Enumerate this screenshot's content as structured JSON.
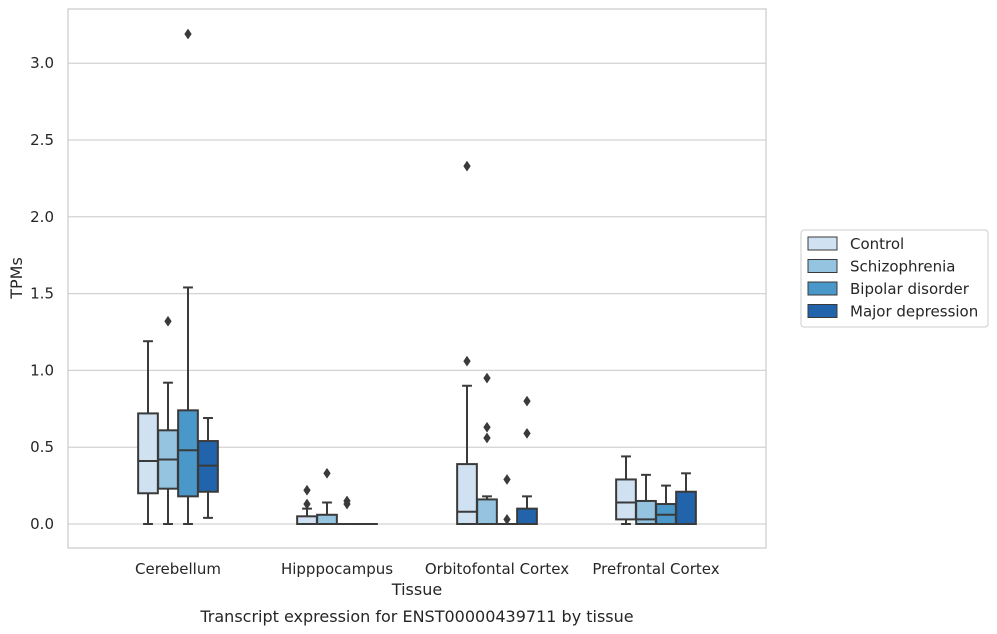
{
  "chart_data": {
    "type": "box",
    "title": "",
    "xlabel": "Tissue",
    "ylabel": "TPMs",
    "caption": "Transcript expression for ENST00000439711 by tissue",
    "ylim": [
      -0.16,
      3.36
    ],
    "yticks": [
      0.0,
      0.5,
      1.0,
      1.5,
      2.0,
      2.5,
      3.0
    ],
    "ytick_labels": [
      "0.0",
      "0.5",
      "1.0",
      "1.5",
      "2.0",
      "2.5",
      "3.0"
    ],
    "grid": "horizontal",
    "legend_position": "right",
    "categories": [
      "Cerebellum",
      "Hipppocampus",
      "Orbitofontal Cortex",
      "Prefrontal Cortex"
    ],
    "series": [
      {
        "name": "Control",
        "color": "#d0e1f2",
        "boxes": [
          {
            "whislo": 0.0,
            "q1": 0.2,
            "med": 0.41,
            "q3": 0.72,
            "whishi": 1.19,
            "fliers": []
          },
          {
            "whislo": 0.0,
            "q1": 0.0,
            "med": 0.0,
            "q3": 0.05,
            "whishi": 0.1,
            "fliers": [
              0.13,
              0.22
            ]
          },
          {
            "whislo": 0.0,
            "q1": 0.0,
            "med": 0.08,
            "q3": 0.39,
            "whishi": 0.9,
            "fliers": [
              1.06,
              2.33
            ]
          },
          {
            "whislo": 0.0,
            "q1": 0.03,
            "med": 0.14,
            "q3": 0.29,
            "whishi": 0.44,
            "fliers": []
          }
        ]
      },
      {
        "name": "Schizophrenia",
        "color": "#94c4df",
        "boxes": [
          {
            "whislo": 0.0,
            "q1": 0.23,
            "med": 0.42,
            "q3": 0.61,
            "whishi": 0.92,
            "fliers": [
              1.32
            ]
          },
          {
            "whislo": 0.0,
            "q1": 0.0,
            "med": 0.0,
            "q3": 0.06,
            "whishi": 0.14,
            "fliers": [
              0.33
            ]
          },
          {
            "whislo": 0.0,
            "q1": 0.0,
            "med": 0.0,
            "q3": 0.16,
            "whishi": 0.18,
            "fliers": [
              0.56,
              0.63,
              0.95
            ]
          },
          {
            "whislo": 0.0,
            "q1": 0.0,
            "med": 0.03,
            "q3": 0.15,
            "whishi": 0.32,
            "fliers": []
          }
        ]
      },
      {
        "name": "Bipolar disorder",
        "color": "#4a98c9",
        "boxes": [
          {
            "whislo": 0.0,
            "q1": 0.18,
            "med": 0.48,
            "q3": 0.74,
            "whishi": 1.54,
            "fliers": [
              3.19
            ]
          },
          {
            "whislo": 0.0,
            "q1": 0.0,
            "med": 0.0,
            "q3": 0.0,
            "whishi": 0.0,
            "fliers": [
              0.13,
              0.15
            ]
          },
          {
            "whislo": 0.0,
            "q1": 0.0,
            "med": 0.0,
            "q3": 0.0,
            "whishi": 0.0,
            "fliers": [
              0.03,
              0.29
            ]
          },
          {
            "whislo": 0.0,
            "q1": 0.0,
            "med": 0.06,
            "q3": 0.13,
            "whishi": 0.25,
            "fliers": []
          }
        ]
      },
      {
        "name": "Major depression",
        "color": "#2164ab",
        "boxes": [
          {
            "whislo": 0.04,
            "q1": 0.21,
            "med": 0.38,
            "q3": 0.54,
            "whishi": 0.69,
            "fliers": []
          },
          {
            "whislo": 0.0,
            "q1": 0.0,
            "med": 0.0,
            "q3": 0.0,
            "whishi": 0.0,
            "fliers": []
          },
          {
            "whislo": 0.0,
            "q1": 0.0,
            "med": 0.0,
            "q3": 0.1,
            "whishi": 0.18,
            "fliers": [
              0.59,
              0.8
            ]
          },
          {
            "whislo": 0.0,
            "q1": 0.0,
            "med": 0.0,
            "q3": 0.21,
            "whishi": 0.33,
            "fliers": []
          }
        ]
      }
    ]
  }
}
